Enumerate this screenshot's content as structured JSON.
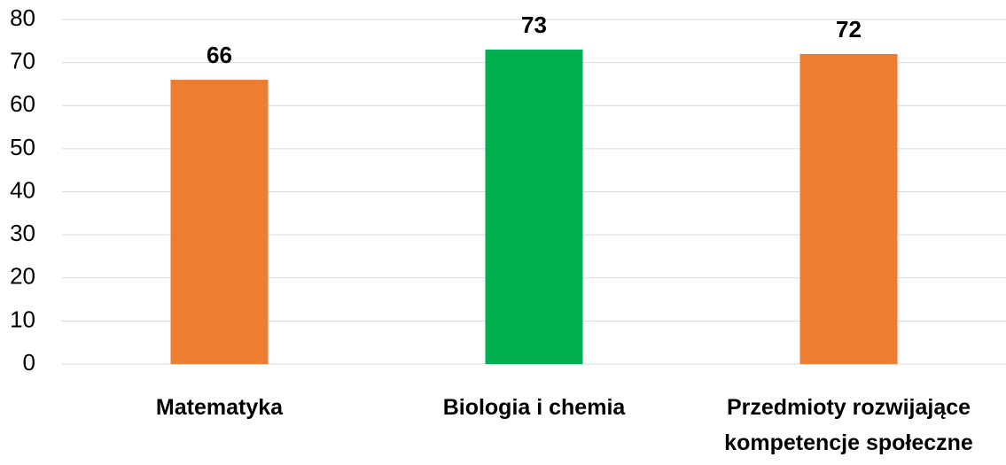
{
  "chart_data": {
    "type": "bar",
    "categories": [
      "Matematyka",
      "Biologia i chemia",
      "Przedmioty rozwijające kompetencje społeczne"
    ],
    "values": [
      66,
      73,
      72
    ],
    "colors": [
      "#ED7D31",
      "#00B050",
      "#ED7D31"
    ],
    "ylim": [
      0,
      80
    ],
    "yticks": [
      0,
      10,
      20,
      30,
      40,
      50,
      60,
      70,
      80
    ],
    "grid": true
  }
}
